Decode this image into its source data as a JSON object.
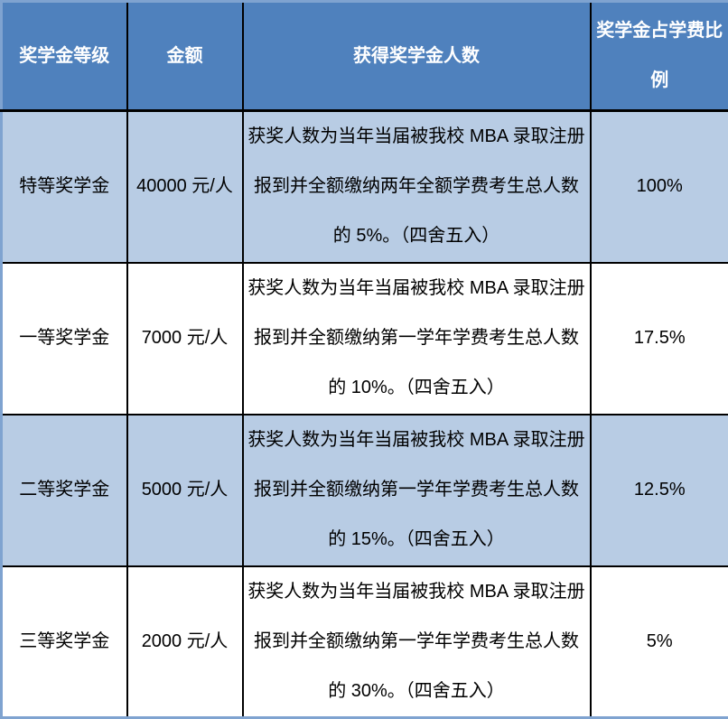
{
  "colors": {
    "header_bg": "#4F81BD",
    "header_text": "#FFFFFF",
    "shaded_row_bg": "#B8CCE4",
    "row_bg": "#FFFFFF",
    "outer_border": "#7FA3D0",
    "inner_border": "#000000",
    "body_text": "#000000"
  },
  "table": {
    "columns": [
      {
        "key": "level",
        "label": "奖学金等级"
      },
      {
        "key": "amount",
        "label": "金额"
      },
      {
        "key": "recipients",
        "label": "获得奖学金人数"
      },
      {
        "key": "ratio",
        "label": "奖学金占学费比例"
      }
    ],
    "rows": [
      {
        "level": "特等奖学金",
        "amount": "40000 元/人",
        "recipients": "获奖人数为当年当届被我校 MBA 录取注册报到并全额缴纳两年全额学费考生总人数的 5%。（四舍五入）",
        "ratio": "100%"
      },
      {
        "level": "一等奖学金",
        "amount": "7000 元/人",
        "recipients": "获奖人数为当年当届被我校 MBA 录取注册报到并全额缴纳第一学年学费考生总人数的 10%。（四舍五入）",
        "ratio": "17.5%"
      },
      {
        "level": "二等奖学金",
        "amount": "5000 元/人",
        "recipients": "获奖人数为当年当届被我校 MBA 录取注册报到并全额缴纳第一学年学费考生总人数的 15%。（四舍五入）",
        "ratio": "12.5%"
      },
      {
        "level": "三等奖学金",
        "amount": "2000 元/人",
        "recipients": "获奖人数为当年当届被我校 MBA 录取注册报到并全额缴纳第一学年学费考生总人数的 30%。（四舍五入）",
        "ratio": "5%"
      }
    ]
  }
}
